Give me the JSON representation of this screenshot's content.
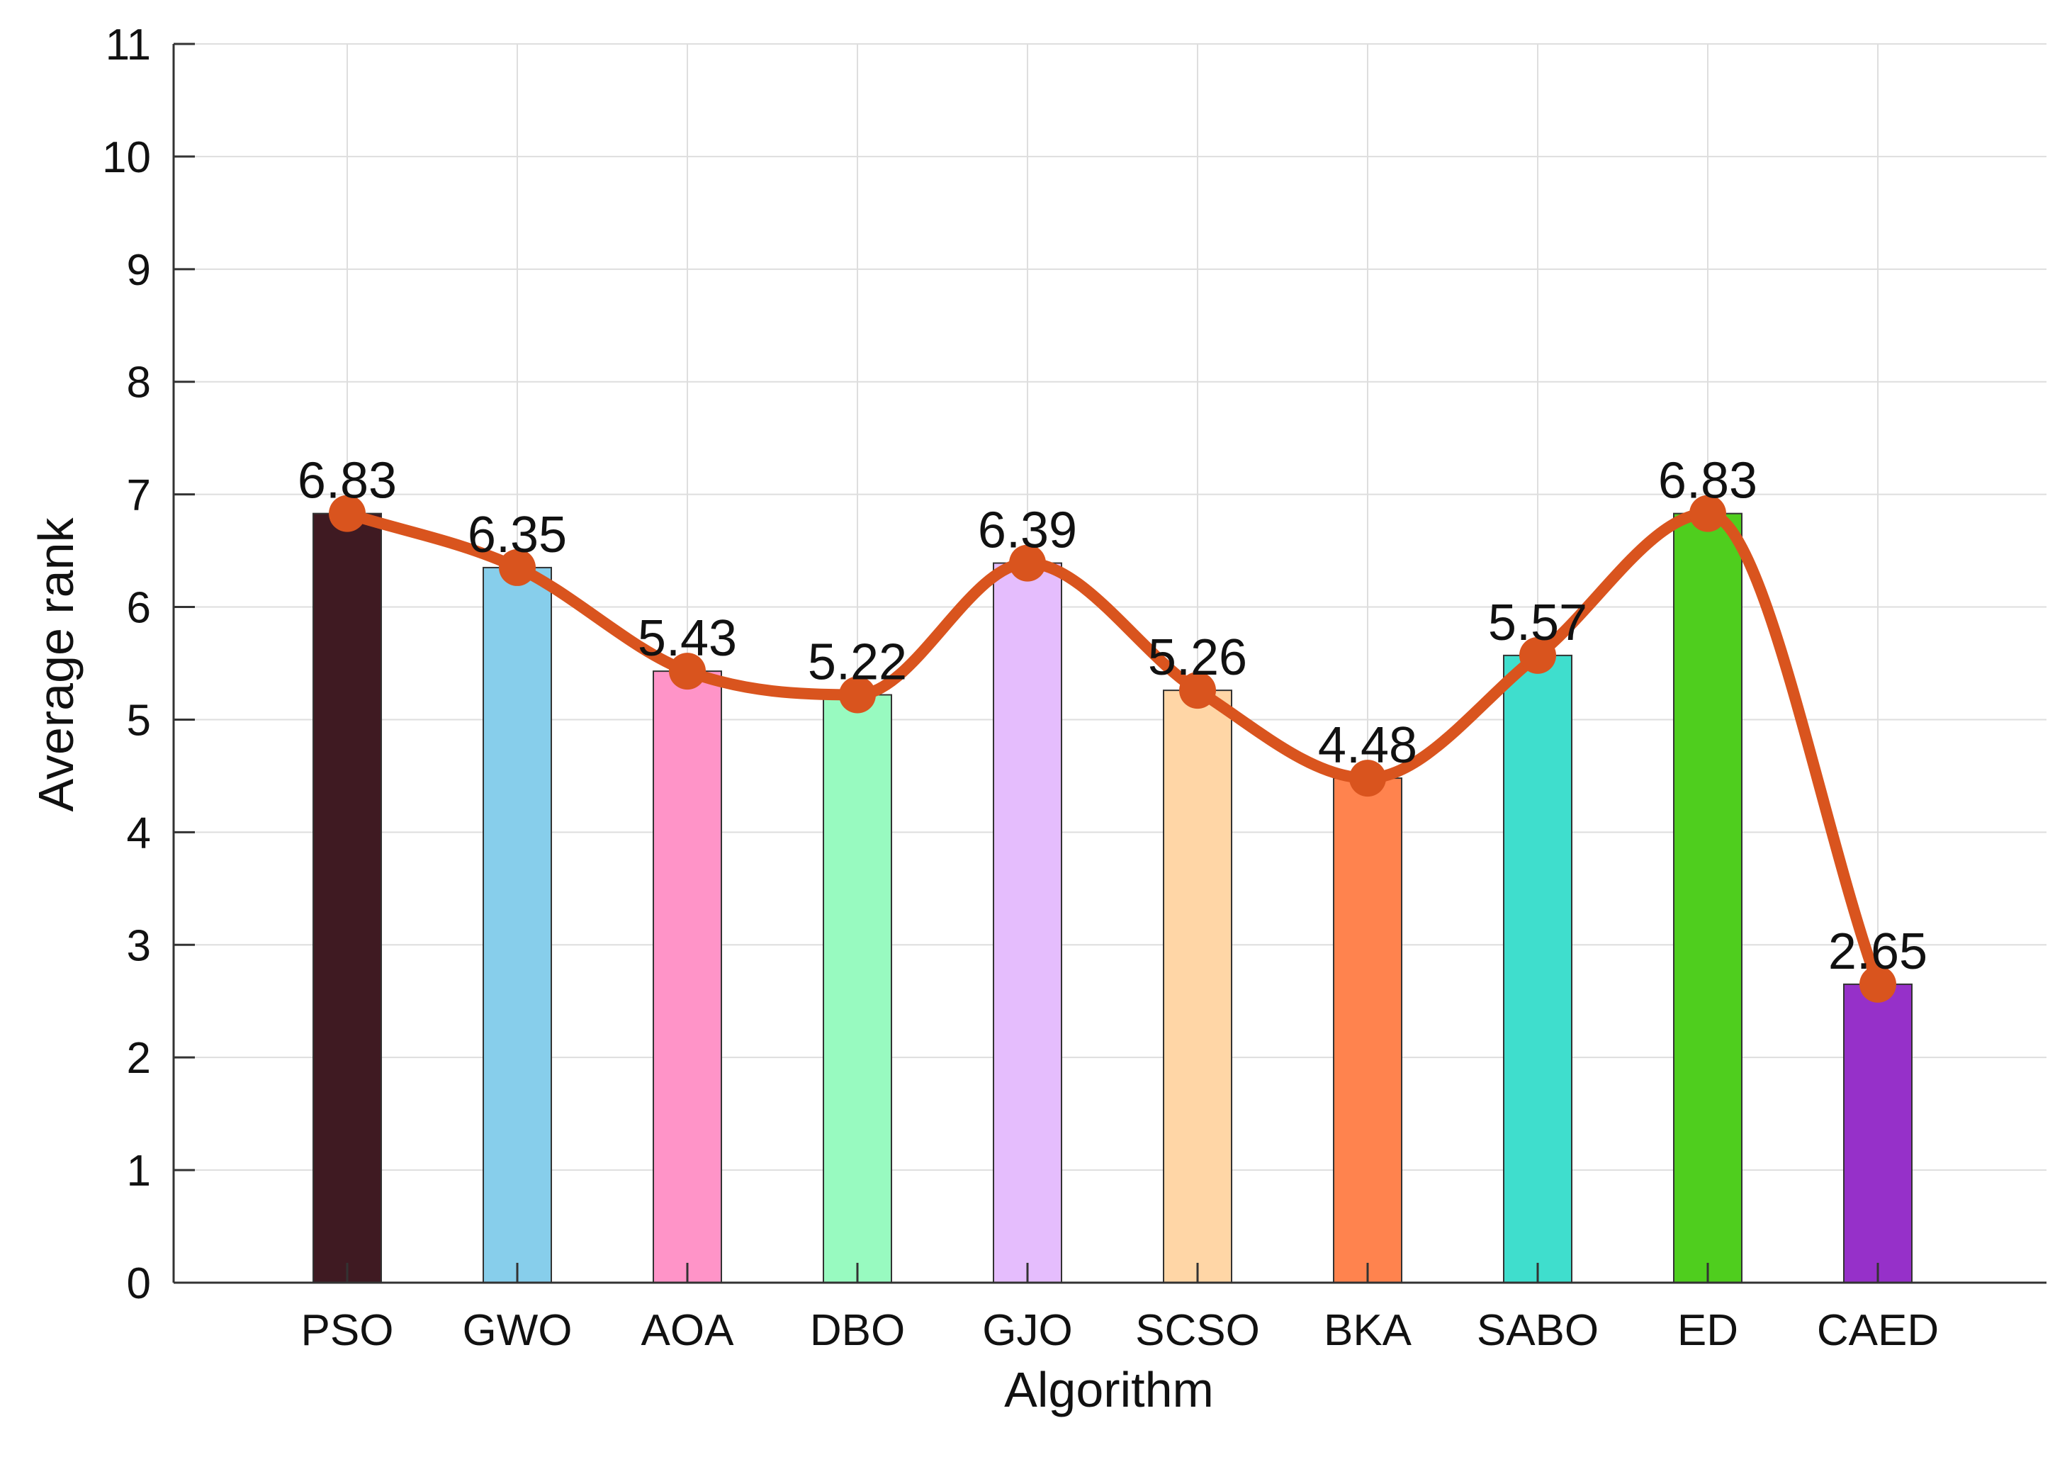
{
  "chart_data": {
    "type": "bar",
    "title": "",
    "xlabel": "Algorithm",
    "ylabel": "Average rank",
    "ylim": [
      0,
      11
    ],
    "yticks": [
      0,
      1,
      2,
      3,
      4,
      5,
      6,
      7,
      8,
      9,
      10,
      11
    ],
    "grid": true,
    "categories": [
      "PSO",
      "GWO",
      "AOA",
      "DBO",
      "GJO",
      "SCSO",
      "BKA",
      "SABO",
      "ED",
      "CAED"
    ],
    "values": [
      6.83,
      6.35,
      5.43,
      5.22,
      6.39,
      5.26,
      4.48,
      5.57,
      6.83,
      2.65
    ],
    "data_labels": [
      "6.83",
      "6.35",
      "5.43",
      "5.22",
      "6.39",
      "5.26",
      "4.48",
      "5.57",
      "6.83",
      "2.65"
    ],
    "bar_colors": [
      "#3f1a22",
      "#87ceeb",
      "#ff94c8",
      "#98fac0",
      "#e5bdfd",
      "#ffd6a6",
      "#ff834e",
      "#3fdecd",
      "#4fce1e",
      "#9630c9"
    ],
    "overlay_line": {
      "type": "smooth-line",
      "color": "#d9541e",
      "values": [
        6.83,
        6.35,
        5.43,
        5.22,
        6.39,
        5.26,
        4.48,
        5.57,
        6.83,
        2.65
      ]
    }
  }
}
